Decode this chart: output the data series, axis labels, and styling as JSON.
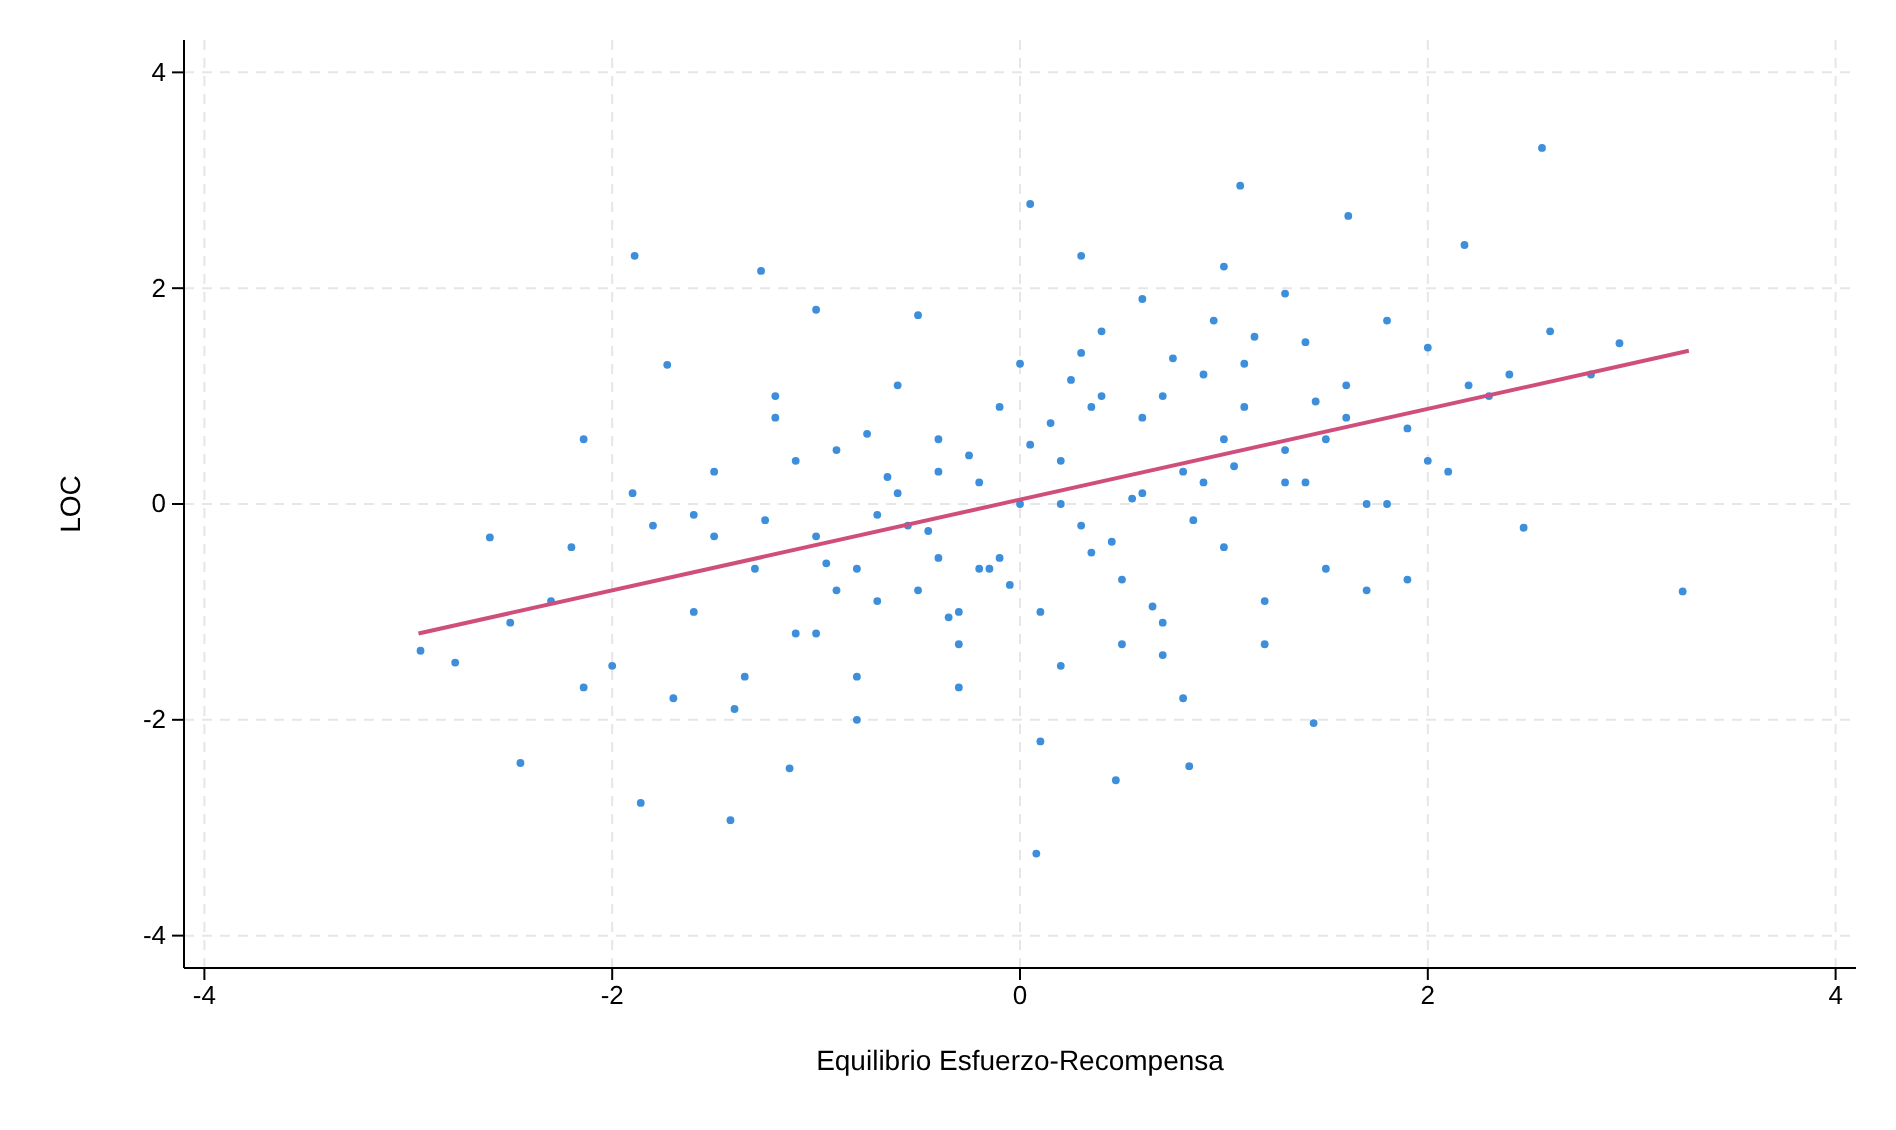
{
  "chart_data": {
    "type": "scatter",
    "xlabel": "Equilibrio Esfuerzo-Recompensa",
    "ylabel": "LOC",
    "xlim": [
      -4.1,
      4.1
    ],
    "ylim": [
      -4.3,
      4.3
    ],
    "xticks": [
      -4,
      -2,
      0,
      2,
      4
    ],
    "yticks": [
      -4,
      -2,
      0,
      2,
      4
    ],
    "grid": true,
    "series": [
      {
        "marker": "circle",
        "color": "#3d8fdc",
        "x": [
          -0.25,
          0.15,
          0.45,
          -0.65,
          0.85,
          1.15,
          -0.95,
          0.55,
          -0.35,
          0.05,
          0.75,
          -1.25,
          1.45,
          -0.05,
          0.25,
          0.65,
          -0.45,
          1.05,
          -0.75,
          0.35,
          2.56,
          3.25,
          0.08,
          -1.42,
          -1.86,
          -2.45,
          1.08,
          0.05,
          -1.89,
          -1.27,
          2.18,
          1.61,
          -2.94,
          -2.77,
          -2.6,
          2.94,
          2.47,
          0.47,
          -1.13,
          0.83,
          1.44,
          -2.14,
          -2.14,
          -1.73,
          -1.0,
          -0.5,
          0.3,
          0.6,
          1.0,
          1.3,
          1.8,
          2.0,
          2.3,
          2.6,
          2.8,
          -2.3,
          -2.0,
          -1.8,
          -1.6,
          -1.5,
          -1.3,
          -1.2,
          -1.1,
          -1.0,
          -0.9,
          -0.8,
          -0.7,
          -0.6,
          -0.5,
          -0.4,
          -0.3,
          -0.2,
          -0.1,
          0.0,
          0.1,
          0.2,
          0.3,
          0.4,
          0.5,
          0.6,
          0.7,
          0.8,
          0.9,
          1.0,
          1.1,
          1.2,
          1.3,
          1.4,
          1.5,
          1.6,
          1.7,
          1.9,
          2.1,
          -1.7,
          -1.4,
          -1.1,
          -0.8,
          -0.6,
          -0.3,
          -0.1,
          0.2,
          0.4,
          0.7,
          0.9,
          1.2,
          1.5,
          1.8,
          -2.2,
          -1.9,
          -1.5,
          -1.2,
          -0.9,
          -0.7,
          -0.4,
          -0.2,
          0.1,
          0.3,
          0.6,
          0.8,
          1.1,
          1.4,
          1.7,
          2.0,
          2.2,
          -1.6,
          -1.0,
          -0.4,
          0.0,
          0.5,
          1.0,
          1.6,
          -0.8,
          -0.3,
          0.2,
          0.7,
          1.3,
          0.35,
          -0.55,
          -1.35,
          0.95,
          1.9,
          -2.5,
          2.4,
          -0.15
        ],
        "values": [
          0.45,
          0.75,
          -0.35,
          0.25,
          -0.15,
          1.55,
          -0.55,
          0.05,
          -1.05,
          0.55,
          1.35,
          -0.15,
          0.95,
          -0.75,
          1.15,
          -0.95,
          -0.25,
          0.35,
          0.65,
          -0.45,
          3.3,
          -0.81,
          -3.24,
          -2.93,
          -2.77,
          -2.4,
          2.95,
          2.78,
          2.3,
          2.16,
          2.4,
          2.67,
          -1.36,
          -1.47,
          -0.31,
          1.49,
          -0.22,
          -2.56,
          -2.45,
          -2.43,
          -2.03,
          -1.7,
          0.6,
          1.29,
          1.8,
          1.75,
          2.3,
          1.9,
          2.2,
          1.95,
          1.7,
          1.45,
          1.0,
          1.6,
          1.2,
          -0.9,
          -1.5,
          -0.2,
          -1.0,
          0.3,
          -0.6,
          0.8,
          -1.2,
          -0.3,
          0.5,
          -1.6,
          -0.1,
          1.1,
          -0.8,
          0.6,
          -1.3,
          0.2,
          -0.5,
          1.3,
          -1.0,
          0.4,
          -0.2,
          1.0,
          -0.7,
          0.8,
          -1.4,
          0.3,
          1.2,
          -0.4,
          0.9,
          -0.9,
          0.5,
          1.5,
          -0.6,
          1.1,
          0.0,
          0.7,
          0.3,
          -1.8,
          -1.9,
          0.4,
          -2.0,
          0.1,
          -1.7,
          0.9,
          -1.5,
          1.6,
          -1.1,
          0.2,
          -1.3,
          0.6,
          0.0,
          -0.4,
          0.1,
          -0.3,
          1.0,
          -0.8,
          -0.9,
          0.3,
          -0.6,
          -2.2,
          1.4,
          0.1,
          -1.8,
          1.3,
          0.2,
          -0.8,
          0.4,
          1.1,
          -0.1,
          -1.2,
          -0.5,
          0.0,
          -1.3,
          0.6,
          0.8,
          -0.6,
          -1.0,
          0.0,
          1.0,
          0.2,
          0.9,
          -0.2,
          -1.6,
          1.7,
          -0.7,
          -1.1,
          1.2,
          -0.6
        ]
      },
      {
        "type": "line",
        "color": "#cf4e7c",
        "x": [
          -2.95,
          3.28
        ],
        "values": [
          -1.2,
          1.42
        ]
      }
    ]
  }
}
